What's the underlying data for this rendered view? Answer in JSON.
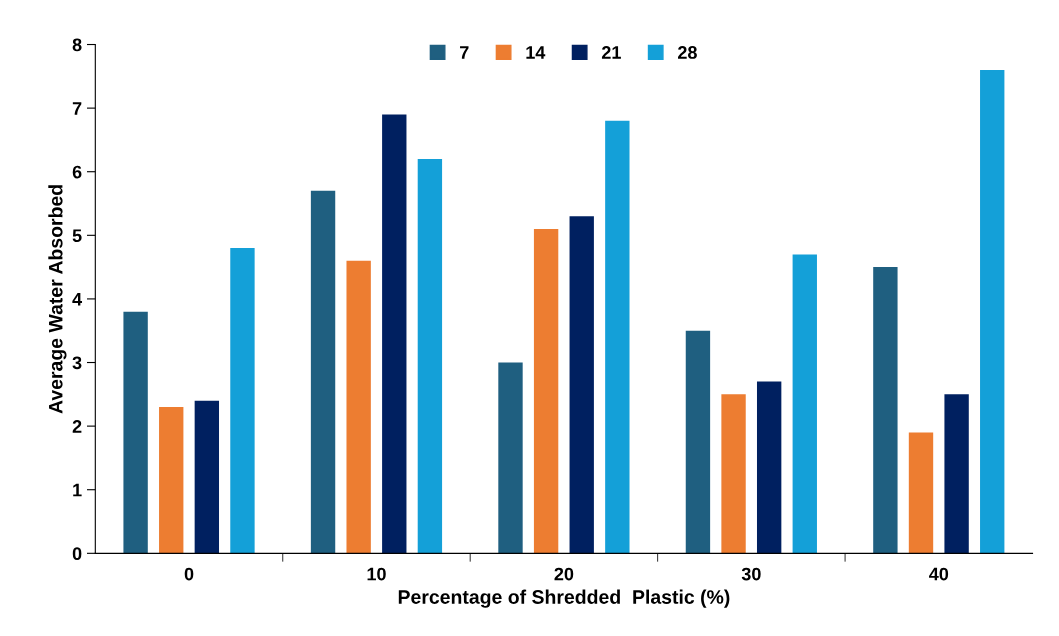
{
  "chart_data": {
    "type": "bar",
    "xlabel": "Percentage of Shredded  Plastic (%)",
    "ylabel": "Average Water Absorbed",
    "categories": [
      "0",
      "10",
      "20",
      "30",
      "40"
    ],
    "series": [
      {
        "name": "7",
        "color": "#1f5f80",
        "values": [
          3.8,
          5.7,
          3.0,
          3.5,
          4.5
        ]
      },
      {
        "name": "14",
        "color": "#ed7d31",
        "values": [
          2.3,
          4.6,
          5.1,
          2.5,
          1.9
        ]
      },
      {
        "name": "21",
        "color": "#002060",
        "values": [
          2.4,
          6.9,
          5.3,
          2.7,
          2.5
        ]
      },
      {
        "name": "28",
        "color": "#14a0d8",
        "values": [
          4.8,
          6.2,
          6.8,
          4.7,
          7.6
        ]
      }
    ],
    "ylim": [
      0,
      8
    ],
    "yticks": [
      0,
      1,
      2,
      3,
      4,
      5,
      6,
      7,
      8
    ],
    "grid": false,
    "legend": "top"
  }
}
